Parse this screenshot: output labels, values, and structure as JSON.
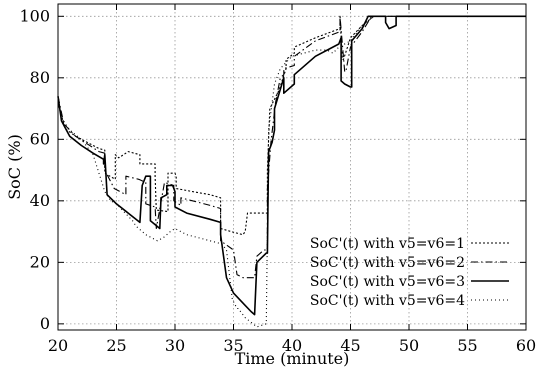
{
  "chart_data": {
    "type": "line",
    "xlabel": "Time (minute)",
    "ylabel": "SoC (%)",
    "xlim": [
      20,
      60
    ],
    "ylim": [
      -2,
      104
    ],
    "xticks": [
      20,
      25,
      30,
      35,
      40,
      45,
      50,
      55,
      60
    ],
    "yticks": [
      0,
      20,
      40,
      60,
      80,
      100
    ],
    "grid": true,
    "legend_position": "bottom-right",
    "series": [
      {
        "name": "SoC'(t) with v5=v6=1",
        "dash": "2,2",
        "x": [
          20.0,
          20.6,
          21.5,
          22.5,
          23.5,
          24.0,
          24.0,
          24.9,
          24.9,
          25.2,
          26.0,
          27.0,
          27.0,
          28.3,
          28.3,
          28.4,
          29.4,
          29.4,
          30.0,
          30.1,
          30.1,
          31.5,
          33.0,
          33.9,
          33.9,
          34.8,
          35.8,
          36.0,
          36.2,
          37.9,
          37.9,
          38.1,
          38.9,
          39.5,
          39.5,
          40.2,
          40.2,
          42.0,
          44.1,
          44.1,
          44.3,
          44.4,
          45.0,
          46.0,
          47.0,
          47.3,
          48.0,
          54.0,
          60.0
        ],
        "y": [
          72.0,
          63.5,
          61.0,
          59.0,
          57.0,
          56.5,
          49.0,
          47.0,
          55.0,
          54.0,
          56.0,
          55.0,
          52.0,
          52.0,
          48.0,
          37.0,
          36.5,
          49.0,
          49.0,
          48.0,
          44.0,
          43.0,
          42.0,
          41.0,
          31.0,
          30.0,
          29.0,
          30.0,
          36.0,
          36.0,
          50.0,
          70.0,
          76.0,
          83.0,
          86.0,
          88.0,
          90.0,
          93.0,
          96.0,
          100.0,
          86.0,
          86.0,
          93.0,
          97.0,
          100.0,
          100.0,
          100.0,
          100.0,
          100.0
        ]
      },
      {
        "name": "SoC'(t) with v5=v6=2",
        "dash": "7,3,1.5,3",
        "x": [
          20.0,
          20.5,
          21.5,
          22.5,
          23.5,
          24.0,
          24.0,
          24.8,
          25.8,
          25.8,
          26.9,
          27.5,
          27.5,
          28.3,
          28.4,
          29.1,
          29.1,
          29.9,
          29.9,
          30.5,
          30.5,
          31.5,
          33.0,
          33.9,
          33.9,
          35.0,
          35.3,
          35.8,
          36.8,
          37.0,
          37.6,
          37.9,
          37.9,
          38.2,
          38.6,
          39.0,
          39.3,
          39.3,
          40.2,
          40.2,
          42.0,
          44.1,
          44.1,
          44.5,
          44.6,
          45.0,
          46.0,
          46.8,
          48.0,
          54.0,
          60.0
        ],
        "y": [
          74.0,
          65.0,
          61.0,
          58.5,
          56.0,
          55.5,
          50.0,
          44.0,
          42.0,
          48.0,
          47.0,
          46.0,
          39.0,
          38.0,
          31.0,
          46.0,
          46.0,
          45.0,
          40.0,
          38.5,
          41.0,
          40.0,
          38.5,
          37.5,
          27.0,
          24.0,
          16.0,
          15.0,
          15.0,
          22.0,
          24.0,
          24.0,
          44.0,
          59.0,
          72.0,
          80.0,
          81.0,
          83.0,
          84.0,
          87.0,
          92.0,
          95.0,
          100.0,
          82.0,
          82.0,
          90.0,
          95.0,
          100.0,
          100.0,
          100.0,
          100.0
        ]
      },
      {
        "name": "SoC'(t) with v5=v6=3",
        "dash": "",
        "x": [
          20.0,
          20.3,
          21.0,
          22.0,
          23.0,
          23.9,
          23.9,
          24.0,
          24.2,
          25.0,
          26.0,
          27.0,
          27.2,
          27.5,
          27.9,
          27.9,
          28.7,
          28.8,
          29.3,
          29.3,
          29.8,
          30.0,
          30.0,
          31.0,
          33.0,
          33.9,
          33.9,
          34.4,
          35.0,
          36.0,
          36.5,
          36.8,
          37.0,
          37.8,
          37.9,
          38.0,
          38.3,
          38.5,
          38.5,
          39.3,
          39.3,
          40.2,
          40.2,
          42.0,
          44.0,
          44.2,
          44.2,
          44.5,
          45.0,
          45.1,
          45.1,
          46.0,
          46.5,
          47.0,
          47.5,
          48.0,
          48.0,
          48.3,
          48.9,
          48.9,
          54.0,
          60.0
        ],
        "y": [
          74.0,
          66.0,
          61.0,
          58.0,
          55.5,
          53.5,
          52.0,
          55.0,
          42.0,
          39.0,
          36.0,
          33.0,
          45.0,
          48.0,
          48.0,
          33.5,
          31.0,
          41.0,
          42.0,
          45.0,
          45.0,
          43.0,
          38.0,
          36.0,
          34.0,
          33.0,
          29.0,
          15.0,
          10.0,
          6.0,
          4.0,
          3.0,
          20.0,
          23.0,
          23.0,
          56.0,
          59.0,
          63.0,
          70.0,
          80.0,
          75.0,
          78.0,
          81.0,
          87.0,
          91.0,
          93.0,
          79.0,
          78.0,
          77.0,
          77.0,
          92.0,
          96.0,
          100.0,
          100.0,
          100.0,
          100.0,
          98.0,
          96.0,
          97.0,
          100.0,
          100.0,
          100.0
        ]
      },
      {
        "name": "SoC'(t) with v5=v6=4",
        "dash": "1,3",
        "x": [
          20.0,
          20.3,
          21.0,
          22.0,
          23.0,
          24.0,
          24.5,
          25.0,
          26.0,
          26.5,
          26.6,
          27.5,
          28.5,
          29.0,
          29.3,
          29.6,
          30.0,
          31.0,
          32.0,
          33.0,
          34.0,
          34.4,
          34.9,
          35.3,
          35.4,
          36.0,
          37.0,
          37.8,
          38.0,
          38.5,
          39.0,
          39.5,
          40.0,
          41.0,
          42.0,
          43.0,
          43.5,
          44.0,
          45.0,
          46.0,
          47.0,
          47.5,
          48.0,
          54.0,
          60.0
        ],
        "y": [
          72.0,
          67.0,
          63.0,
          60.0,
          55.0,
          43.0,
          40.0,
          39.0,
          35.0,
          33.0,
          32.0,
          29.0,
          27.0,
          28.0,
          29.0,
          30.0,
          31.0,
          29.0,
          28.0,
          27.0,
          26.0,
          24.0,
          8.0,
          5.0,
          5.0,
          2.0,
          -1.0,
          0.0,
          63.0,
          78.0,
          83.0,
          85.0,
          87.0,
          88.0,
          89.0,
          89.0,
          88.0,
          90.0,
          92.0,
          97.0,
          100.0,
          100.0,
          100.0,
          100.0,
          100.0
        ]
      }
    ]
  }
}
